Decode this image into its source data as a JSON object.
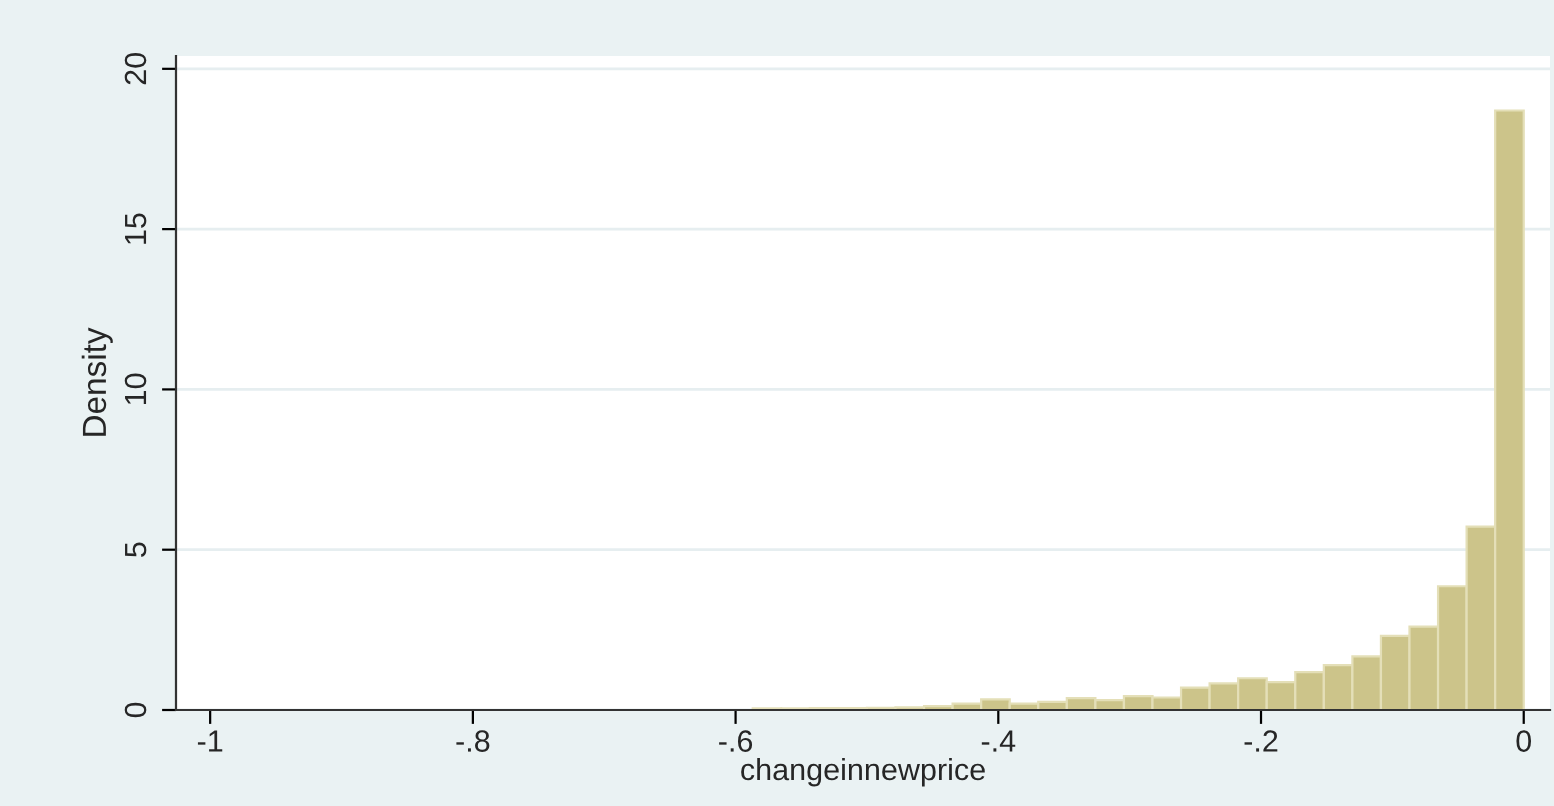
{
  "chart_data": {
    "type": "histogram",
    "xlabel": "changeinnewprice",
    "ylabel": "Density",
    "bins": [
      -1,
      -0.97826,
      -0.95652,
      -0.93478,
      -0.91304,
      -0.8913,
      -0.86957,
      -0.84783,
      -0.82609,
      -0.80435,
      -0.78261,
      -0.76087,
      -0.73913,
      -0.71739,
      -0.69565,
      -0.67391,
      -0.65217,
      -0.63043,
      -0.6087,
      -0.58696,
      -0.56522,
      -0.54348,
      -0.52174,
      -0.5,
      -0.47826,
      -0.45652,
      -0.43478,
      -0.41304,
      -0.3913,
      -0.36957,
      -0.34783,
      -0.32609,
      -0.30435,
      -0.28261,
      -0.26087,
      -0.23913,
      -0.21739,
      -0.19565,
      -0.17391,
      -0.15217,
      -0.13043,
      -0.1087,
      -0.08696,
      -0.06522,
      -0.04348,
      -0.02174,
      0
    ],
    "values": [
      0,
      0,
      0,
      0,
      0,
      0,
      0,
      0,
      0,
      0,
      0,
      0,
      0,
      0,
      0,
      0,
      0,
      0,
      0,
      0.05,
      0.05,
      0.06,
      0.06,
      0.07,
      0.08,
      0.12,
      0.2,
      0.33,
      0.2,
      0.25,
      0.37,
      0.31,
      0.43,
      0.39,
      0.7,
      0.83,
      0.99,
      0.87,
      1.18,
      1.4,
      1.67,
      2.31,
      2.6,
      3.86,
      5.72,
      18.7
    ],
    "color": "#ccc48a",
    "xlim": [
      -1.026,
      0.02
    ],
    "ylim": [
      0,
      20.4
    ],
    "xticks": [
      {
        "value": -1,
        "label": "-1"
      },
      {
        "value": -0.8,
        "label": "-.8"
      },
      {
        "value": -0.6,
        "label": "-.6"
      },
      {
        "value": -0.4,
        "label": "-.4"
      },
      {
        "value": -0.2,
        "label": "-.2"
      },
      {
        "value": 0,
        "label": "0"
      }
    ],
    "yticks": [
      0,
      5,
      10,
      15,
      20
    ],
    "grid": "y"
  }
}
